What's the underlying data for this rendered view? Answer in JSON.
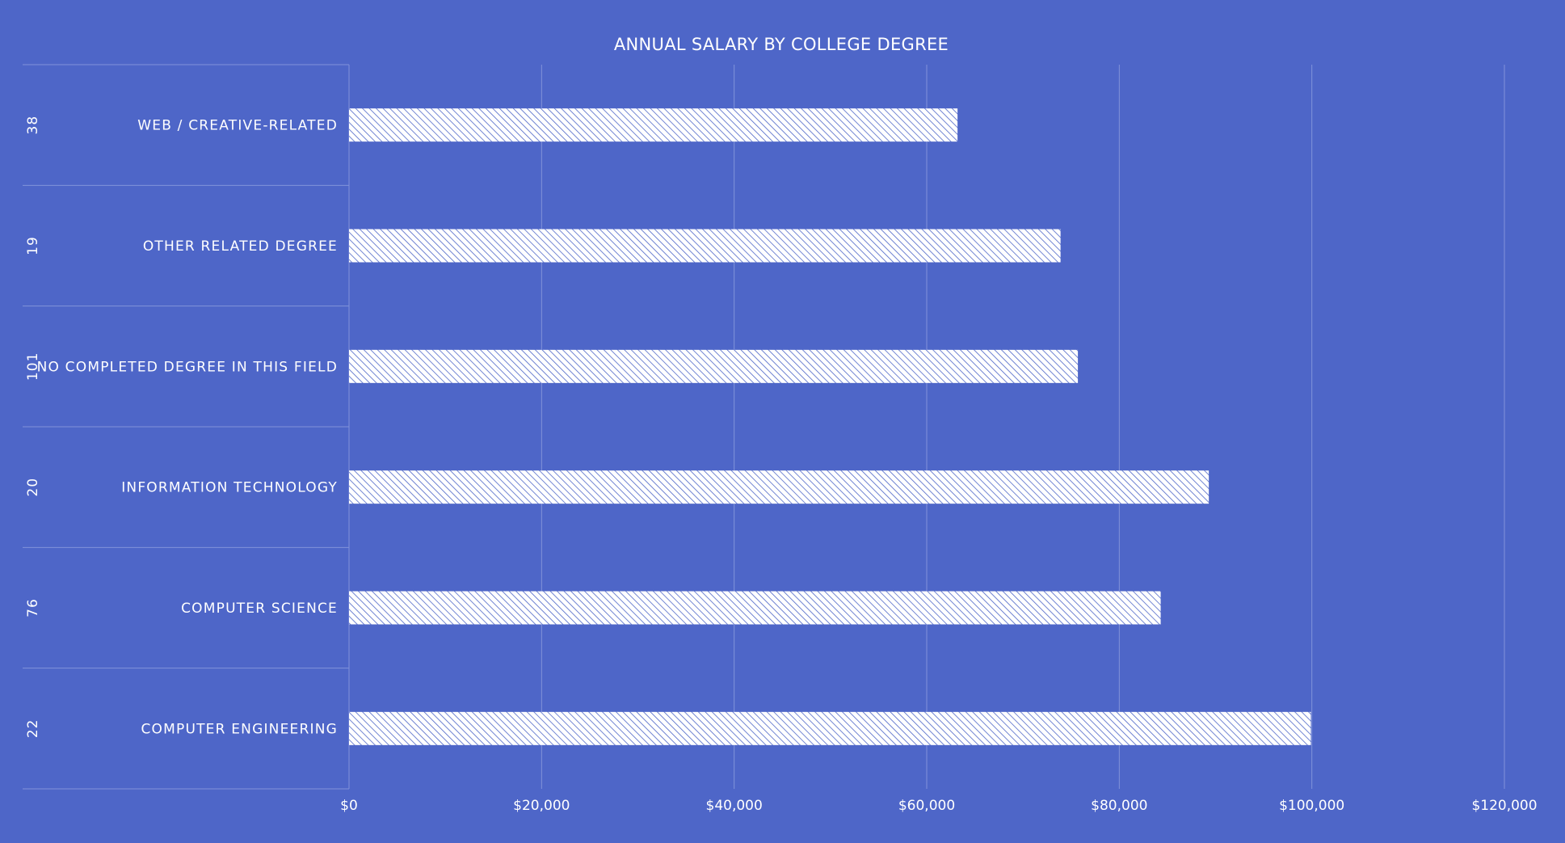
{
  "chart_data": {
    "type": "bar",
    "orientation": "horizontal",
    "title": "ANNUAL SALARY BY COLLEGE DEGREE",
    "xlabel": "",
    "ylabel": "",
    "categories": [
      "WEB / CREATIVE-RELATED",
      "OTHER RELATED DEGREE",
      "NO COMPLETED DEGREE IN THIS FIELD",
      "INFORMATION TECHNOLOGY",
      "COMPUTER SCIENCE",
      "COMPUTER ENGINEERING"
    ],
    "counts": [
      "38",
      "19",
      "101",
      "20",
      "76",
      "22"
    ],
    "values": [
      63200,
      73900,
      75700,
      89300,
      84300,
      99900
    ],
    "xlim": [
      0,
      120000
    ],
    "x_ticks": [
      0,
      20000,
      40000,
      60000,
      80000,
      100000,
      120000
    ],
    "x_tick_labels": [
      "$0",
      "$20,000",
      "$40,000",
      "$60,000",
      "$80,000",
      "$100,000",
      "$120,000"
    ],
    "grid": true,
    "bar_style": "diagonal-hatch",
    "colors": {
      "background": "#4e66c8",
      "bar_fill": "#ffffff",
      "bar_hatch": "#4e66c8",
      "grid": "#8293da",
      "text": "#ffffff"
    }
  }
}
